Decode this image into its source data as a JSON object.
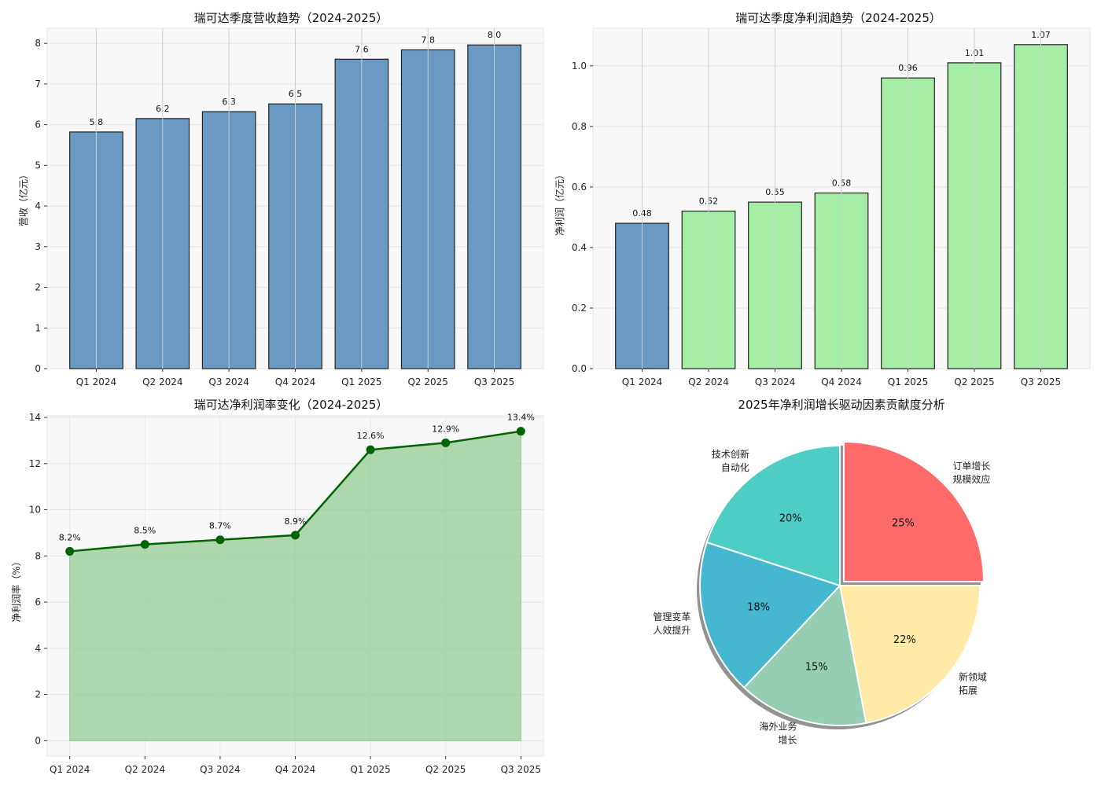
{
  "chart_data": [
    {
      "type": "bar",
      "title": "瑞可达季度营收趋势（2024-2025）",
      "xlabel": "",
      "ylabel": "营收（亿元）",
      "categories": [
        "Q1 2024",
        "Q2 2024",
        "Q3 2024",
        "Q4 2024",
        "Q1 2025",
        "Q2 2025",
        "Q3 2025"
      ],
      "values": [
        5.82,
        6.15,
        6.32,
        6.51,
        7.61,
        7.84,
        7.96
      ],
      "data_labels": [
        "5.8",
        "6.2",
        "6.3",
        "6.5",
        "7.6",
        "7.8",
        "8.0"
      ],
      "ylim": [
        0,
        8.37
      ],
      "yticks": [
        0,
        1,
        2,
        3,
        4,
        5,
        6,
        7,
        8
      ],
      "ytick_labels": [
        "0",
        "1",
        "2",
        "3",
        "4",
        "5",
        "6",
        "7",
        "8"
      ],
      "grid": true,
      "colors": [
        "#6a9ac4",
        "#6a9ac4",
        "#6a9ac4",
        "#6a9ac4",
        "#6a9ac4",
        "#6a9ac4",
        "#6a9ac4"
      ]
    },
    {
      "type": "bar",
      "title": "瑞可达季度净利润趋势（2024-2025）",
      "xlabel": "",
      "ylabel": "净利润（亿元）",
      "categories": [
        "Q1 2024",
        "Q2 2024",
        "Q3 2024",
        "Q4 2024",
        "Q1 2025",
        "Q2 2025",
        "Q3 2025"
      ],
      "values": [
        0.48,
        0.52,
        0.55,
        0.58,
        0.96,
        1.01,
        1.07
      ],
      "data_labels": [
        "0.48",
        "0.52",
        "0.55",
        "0.58",
        "0.96",
        "1.01",
        "1.07"
      ],
      "ylim": [
        0,
        1.124
      ],
      "yticks": [
        0,
        0.2,
        0.4,
        0.6,
        0.8,
        1.0
      ],
      "ytick_labels": [
        "0.0",
        "0.2",
        "0.4",
        "0.6",
        "0.8",
        "1.0"
      ],
      "grid": true,
      "colors": [
        "#6a9ac4",
        "#a6eea6",
        "#a6eea6",
        "#a6eea6",
        "#a6eea6",
        "#a6eea6",
        "#a6eea6"
      ]
    },
    {
      "type": "area",
      "title": "瑞可达净利润率变化（2024-2025）",
      "xlabel": "",
      "ylabel": "净利润率（%）",
      "categories": [
        "Q1 2024",
        "Q2 2024",
        "Q3 2024",
        "Q4 2024",
        "Q1 2025",
        "Q2 2025",
        "Q3 2025"
      ],
      "values": [
        8.2,
        8.5,
        8.7,
        8.9,
        12.6,
        12.9,
        13.4
      ],
      "data_labels": [
        "8.2%",
        "8.5%",
        "8.7%",
        "8.9%",
        "12.6%",
        "12.9%",
        "13.4%"
      ],
      "ylim": [
        -0.67,
        14.07
      ],
      "yticks": [
        0,
        2,
        4,
        6,
        8,
        10,
        12,
        14
      ],
      "ytick_labels": [
        "0",
        "2",
        "4",
        "6",
        "8",
        "10",
        "12",
        "14"
      ],
      "grid": true,
      "line_color": "#006400",
      "fill_color": "#8fc98f"
    },
    {
      "type": "pie",
      "title": "2025年净利润增长驱动因素贡献度分析",
      "slices": [
        {
          "label": "订单增长\n规模效应",
          "value": 25,
          "pct_label": "25%",
          "color": "#ff6b6b",
          "exploded": true
        },
        {
          "label": "新领域\n拓展",
          "value": 22,
          "pct_label": "22%",
          "color": "#ffeaa7",
          "exploded": false
        },
        {
          "label": "海外业务\n增长",
          "value": 15,
          "pct_label": "15%",
          "color": "#96ceb4",
          "exploded": false
        },
        {
          "label": "管理变革\n人效提升",
          "value": 18,
          "pct_label": "18%",
          "color": "#45b7d1",
          "exploded": false
        },
        {
          "label": "技术创新\n自动化",
          "value": 20,
          "pct_label": "20%",
          "color": "#4ecdc4",
          "exploded": false
        }
      ],
      "start_angle": 90,
      "direction": "clockwise",
      "shadow": true
    }
  ]
}
